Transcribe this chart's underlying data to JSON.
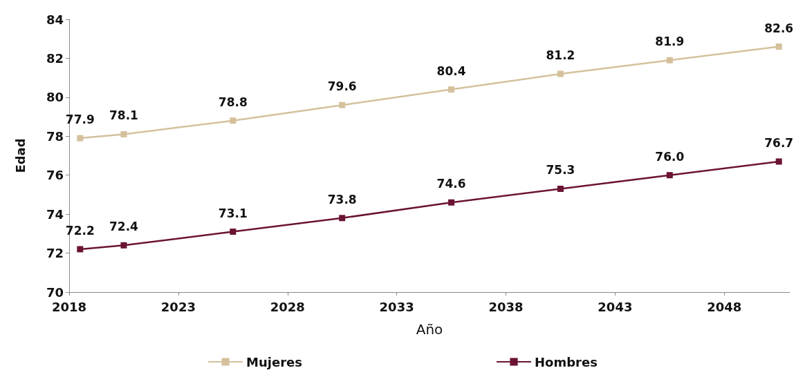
{
  "chart_data": {
    "type": "line",
    "xlabel": "Año",
    "ylabel": "Edad",
    "x": [
      2018.5,
      2020.5,
      2025.5,
      2030.5,
      2035.5,
      2040.5,
      2045.5,
      2050.5
    ],
    "series": [
      {
        "name": "Mujeres",
        "color": "#d4c19c",
        "values": [
          77.9,
          78.1,
          78.8,
          79.6,
          80.4,
          81.2,
          81.9,
          82.6
        ],
        "value_labels": [
          "77.9",
          "78.1",
          "78.8",
          "79.6",
          "80.4",
          "81.2",
          "81.9",
          "82.6"
        ]
      },
      {
        "name": "Hombres",
        "color": "#6b1334",
        "values": [
          72.2,
          72.4,
          73.1,
          73.8,
          74.6,
          75.3,
          76.0,
          76.7
        ],
        "value_labels": [
          "72.2",
          "72.4",
          "73.1",
          "73.8",
          "74.6",
          "75.3",
          "76.0",
          "76.7"
        ]
      }
    ],
    "xlim": [
      2018,
      2051
    ],
    "xticks": [
      2018,
      2023,
      2028,
      2033,
      2038,
      2043,
      2048
    ],
    "ylim": [
      70,
      84
    ],
    "yticks": [
      70,
      72,
      74,
      76,
      78,
      80,
      82,
      84
    ],
    "marker": "square",
    "line_style": "solid",
    "grid": false,
    "legend": "bottom"
  }
}
